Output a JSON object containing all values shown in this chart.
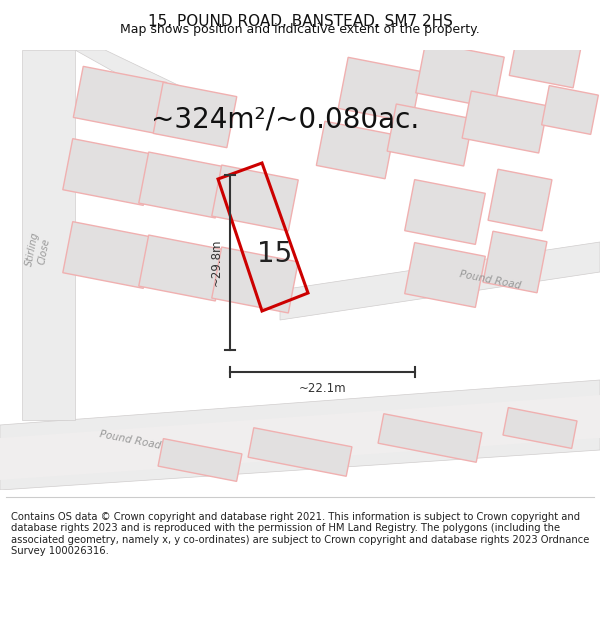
{
  "title": "15, POUND ROAD, BANSTEAD, SM7 2HS",
  "subtitle": "Map shows position and indicative extent of the property.",
  "area_text": "~324m²/~0.080ac.",
  "property_number": "15",
  "dim_height": "~29.8m",
  "dim_width": "~22.1m",
  "footer_text": "Contains OS data © Crown copyright and database right 2021. This information is subject to Crown copyright and database rights 2023 and is reproduced with the permission of HM Land Registry. The polygons (including the associated geometry, namely x, y co-ordinates) are subject to Crown copyright and database rights 2023 Ordnance Survey 100026316.",
  "map_bg": "#f7f5f5",
  "red_line_color": "#cc0000",
  "pink_color": "#f0b0b0",
  "gray_fill": "#e2e0e0",
  "gray_fill2": "#d8d6d6",
  "road_gray": "#e8e6e6",
  "dim_line_color": "#333333",
  "label_color": "#aaaaaa",
  "title_color": "#111111",
  "footer_color": "#222222",
  "footer_fontsize": 7.2,
  "title_fontsize": 11,
  "subtitle_fontsize": 9,
  "area_fontsize": 20,
  "num_fontsize": 20
}
